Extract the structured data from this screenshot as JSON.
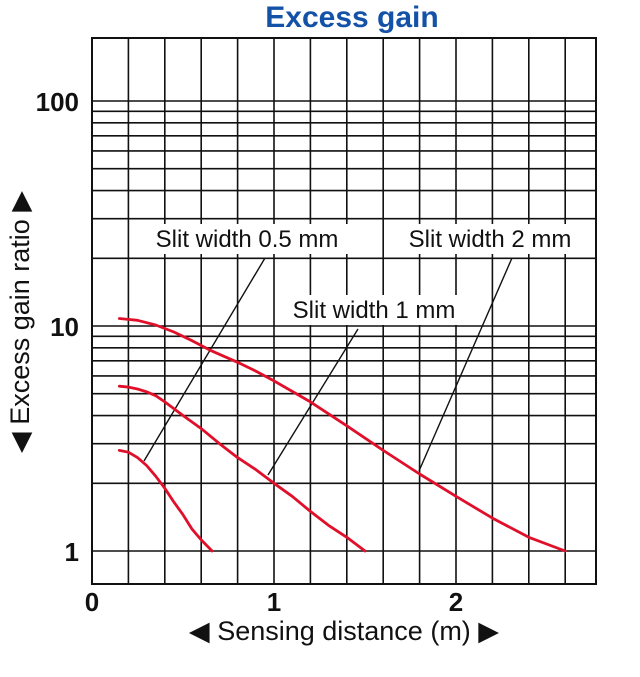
{
  "chart_data": {
    "type": "line",
    "title": "Excess gain",
    "xlabel": "◀ Sensing distance (m) ▶",
    "ylabel": "◀ Excess gain ratio ▶",
    "yscale": "log",
    "xlim": [
      0,
      2.8
    ],
    "ylim": [
      0.85,
      200
    ],
    "x_ticks": [
      "0",
      "1",
      "2"
    ],
    "y_ticks": [
      "1",
      "10",
      "100"
    ],
    "grid": true,
    "line_color": "#e0102a",
    "series": [
      {
        "name": "Slit width 0.5 mm",
        "x": [
          0.15,
          0.2,
          0.25,
          0.3,
          0.35,
          0.4,
          0.45,
          0.5,
          0.55,
          0.6,
          0.66
        ],
        "y": [
          2.8,
          2.75,
          2.6,
          2.4,
          2.15,
          1.9,
          1.65,
          1.45,
          1.25,
          1.12,
          1.0
        ]
      },
      {
        "name": "Slit width 1 mm",
        "x": [
          0.15,
          0.2,
          0.25,
          0.3,
          0.35,
          0.4,
          0.5,
          0.6,
          0.7,
          0.8,
          0.9,
          1.0,
          1.1,
          1.2,
          1.3,
          1.4,
          1.5
        ],
        "y": [
          5.4,
          5.35,
          5.25,
          5.1,
          4.9,
          4.6,
          4.0,
          3.5,
          3.0,
          2.6,
          2.3,
          2.0,
          1.75,
          1.5,
          1.3,
          1.15,
          1.0
        ]
      },
      {
        "name": "Slit width 2 mm",
        "x": [
          0.15,
          0.25,
          0.35,
          0.45,
          0.55,
          0.65,
          0.8,
          0.9,
          1.0,
          1.2,
          1.4,
          1.6,
          1.8,
          2.0,
          2.2,
          2.4,
          2.6
        ],
        "y": [
          10.8,
          10.6,
          10.1,
          9.4,
          8.6,
          7.8,
          6.9,
          6.3,
          5.7,
          4.6,
          3.6,
          2.8,
          2.2,
          1.75,
          1.4,
          1.15,
          1.0
        ]
      }
    ],
    "annotations": [
      {
        "text": "Slit width 0.5 mm",
        "series": 0
      },
      {
        "text": "Slit width 1 mm",
        "series": 1
      },
      {
        "text": "Slit width 2 mm",
        "series": 2
      }
    ]
  }
}
